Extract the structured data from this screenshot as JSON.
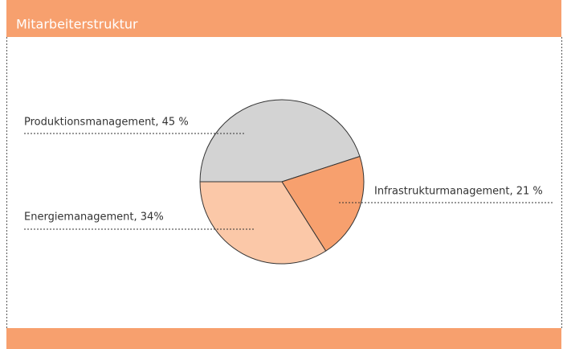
{
  "chart_data": {
    "type": "pie",
    "title": "Mitarbeiterstruktur",
    "categories": [
      "Produktionsmanagement, 45 %",
      "Infrastrukturmanagement, 21 %",
      "Energiemanagement, 34%"
    ],
    "values": [
      45,
      21,
      34
    ],
    "colors": [
      "#d3d3d3",
      "#f7a06e",
      "#fbc8a8"
    ]
  }
}
